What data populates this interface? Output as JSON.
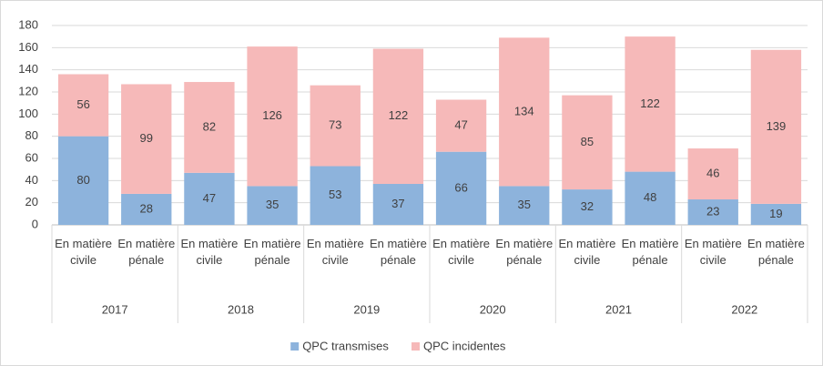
{
  "chart_data": {
    "type": "stacked-bar",
    "categories": [
      "En matière civile",
      "En matière pénale",
      "En matière civile",
      "En matière pénale",
      "En matière civile",
      "En matière pénale",
      "En matière civile",
      "En matière pénale",
      "En matière civile",
      "En matière pénale",
      "En matière civile",
      "En matière pénale"
    ],
    "groups": [
      "2017",
      "2018",
      "2019",
      "2020",
      "2021",
      "2022"
    ],
    "series": [
      {
        "name": "QPC transmises",
        "color": "#8db3dc",
        "values": [
          80,
          28,
          47,
          35,
          53,
          37,
          66,
          35,
          32,
          48,
          23,
          19
        ]
      },
      {
        "name": "QPC incidentes",
        "color": "#f6b9b9",
        "values": [
          56,
          99,
          82,
          126,
          73,
          122,
          47,
          134,
          85,
          122,
          46,
          139
        ]
      }
    ],
    "ylim": [
      0,
      180
    ],
    "yticks": [
      0,
      20,
      40,
      60,
      80,
      100,
      120,
      140,
      160,
      180
    ],
    "grid": true,
    "legend": "bottom"
  }
}
